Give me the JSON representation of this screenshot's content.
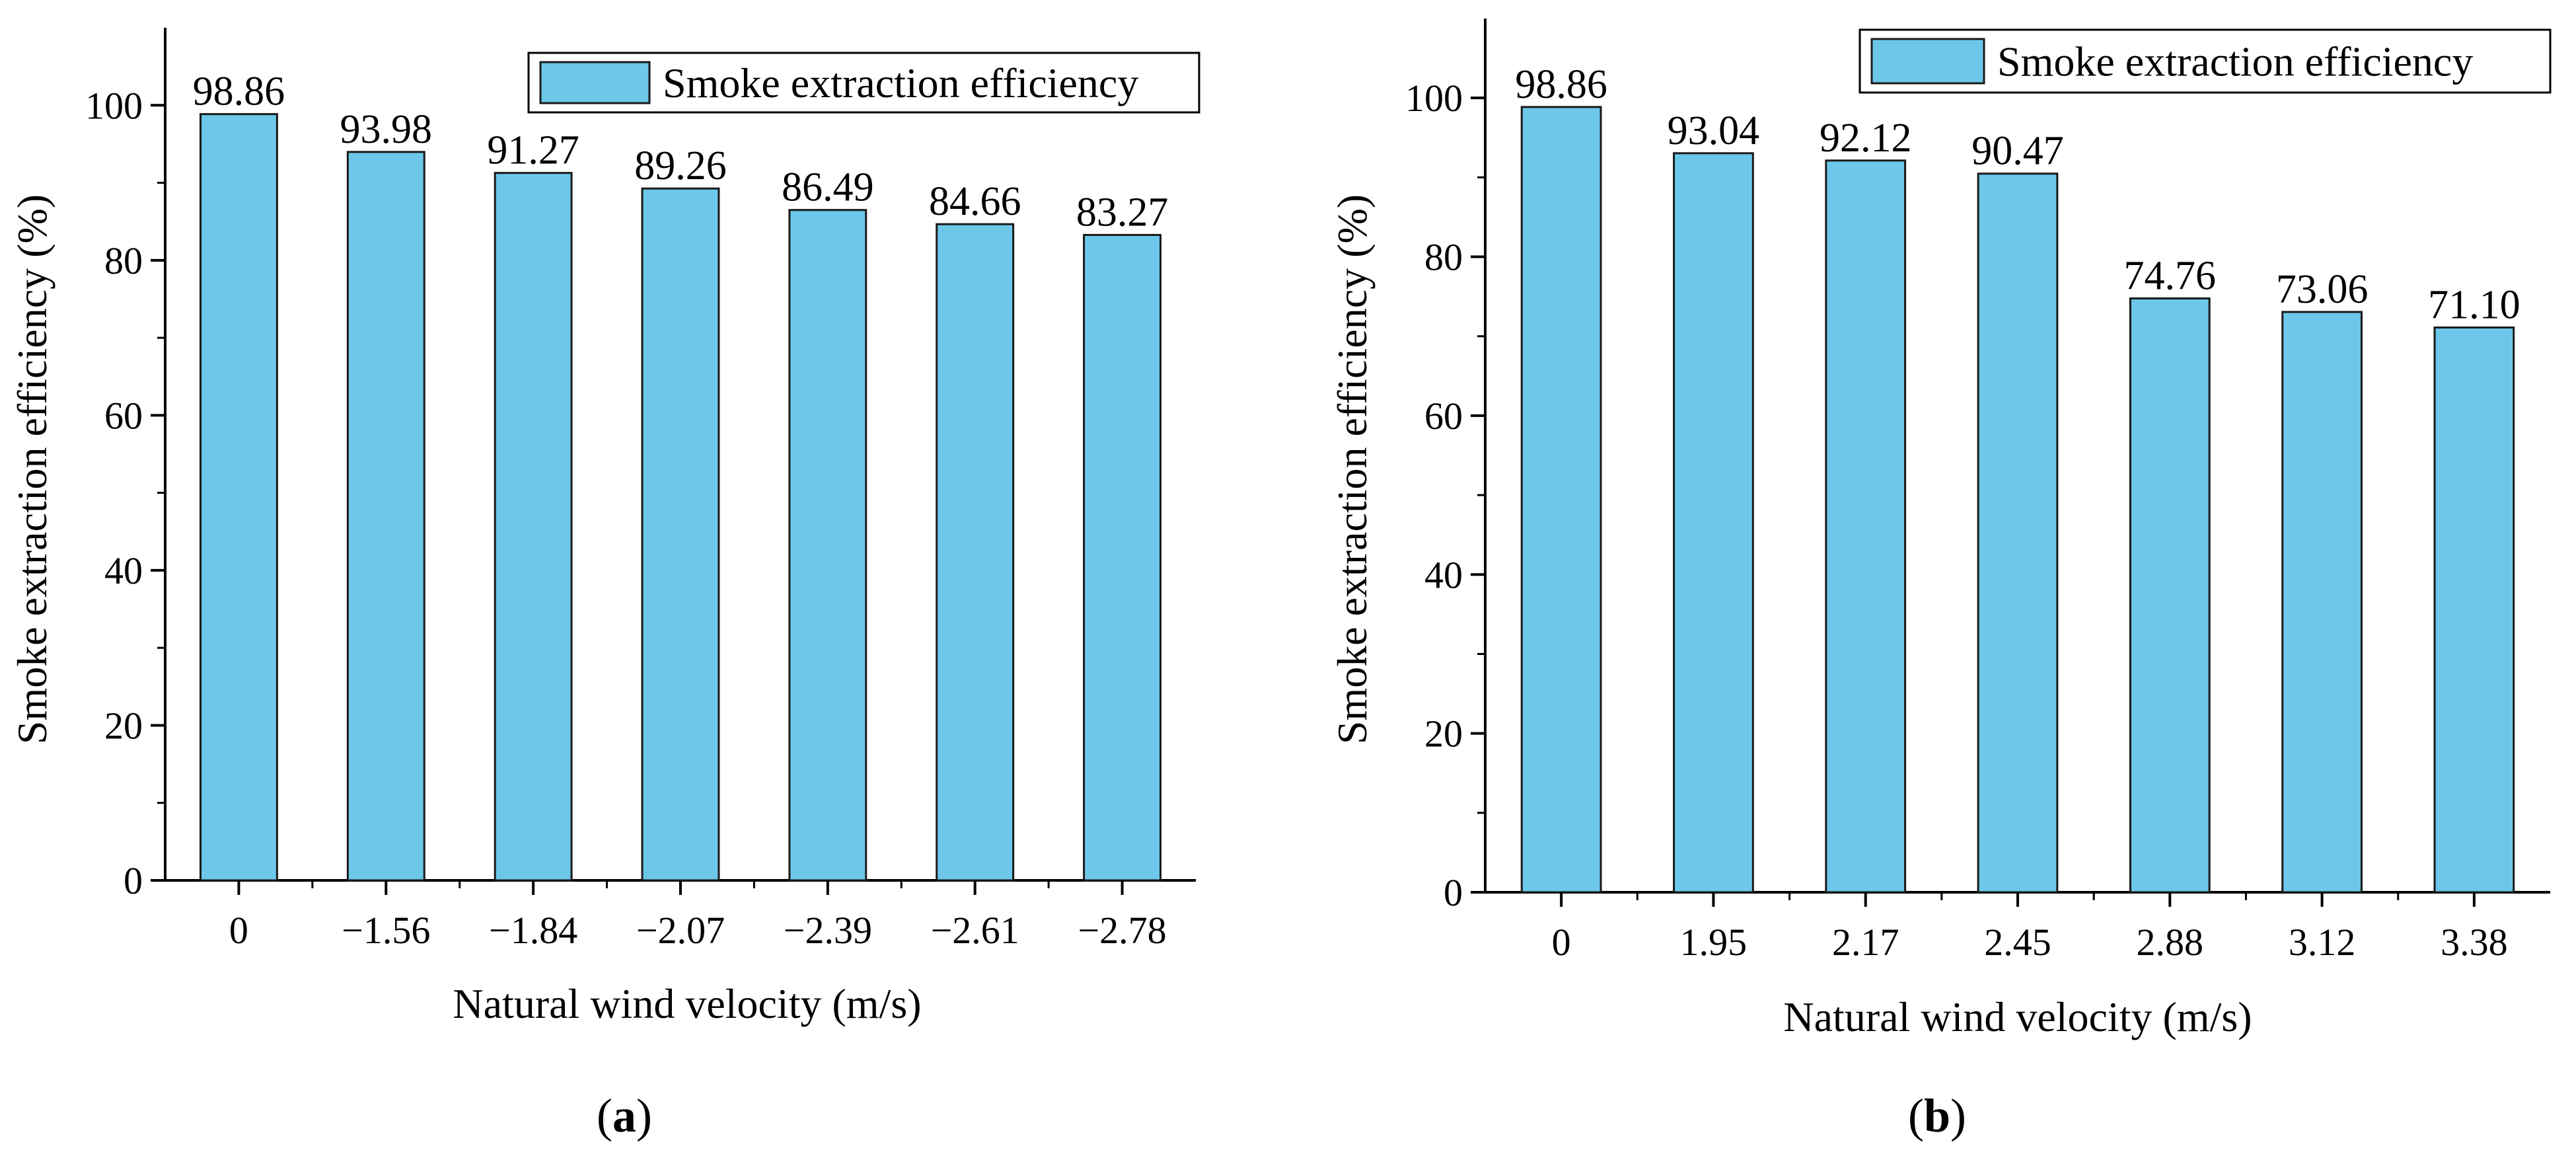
{
  "colors": {
    "bar_fill": "#6cc7e8",
    "bar_stroke": "#1a1a1a"
  },
  "chart_data": [
    {
      "id": "a",
      "type": "bar",
      "panel_label_open": "(",
      "panel_label_letter": "a",
      "panel_label_close": ")",
      "categories": [
        "0",
        "−1.56",
        "−1.84",
        "−2.07",
        "−2.39",
        "−2.61",
        "−2.78"
      ],
      "series": [
        {
          "name": "Smoke extraction efficiency",
          "values": [
            98.86,
            93.98,
            91.27,
            89.26,
            86.49,
            84.66,
            83.27
          ]
        }
      ],
      "value_labels": [
        "98.86",
        "93.98",
        "91.27",
        "89.26",
        "86.49",
        "84.66",
        "83.27"
      ],
      "xlabel": "Natural wind velocity (m/s)",
      "ylabel": "Smoke extraction efficiency (%)",
      "ylim": [
        0,
        110
      ],
      "yticks": [
        0,
        20,
        40,
        60,
        80,
        100
      ],
      "ytick_labels": [
        "0",
        "20",
        "40",
        "60",
        "80",
        "100"
      ],
      "legend": "top-right"
    },
    {
      "id": "b",
      "type": "bar",
      "panel_label_open": "(",
      "panel_label_letter": "b",
      "panel_label_close": ")",
      "categories": [
        "0",
        "1.95",
        "2.17",
        "2.45",
        "2.88",
        "3.12",
        "3.38"
      ],
      "series": [
        {
          "name": "Smoke extraction efficiency",
          "values": [
            98.86,
            93.04,
            92.12,
            90.47,
            74.76,
            73.06,
            71.1
          ]
        }
      ],
      "value_labels": [
        "98.86",
        "93.04",
        "92.12",
        "90.47",
        "74.76",
        "73.06",
        "71.10"
      ],
      "xlabel": "Natural wind velocity (m/s)",
      "ylabel": "Smoke extraction efficiency (%)",
      "ylim": [
        0,
        110
      ],
      "yticks": [
        0,
        20,
        40,
        60,
        80,
        100
      ],
      "ytick_labels": [
        "0",
        "20",
        "40",
        "60",
        "80",
        "100"
      ],
      "legend": "top-right"
    }
  ]
}
